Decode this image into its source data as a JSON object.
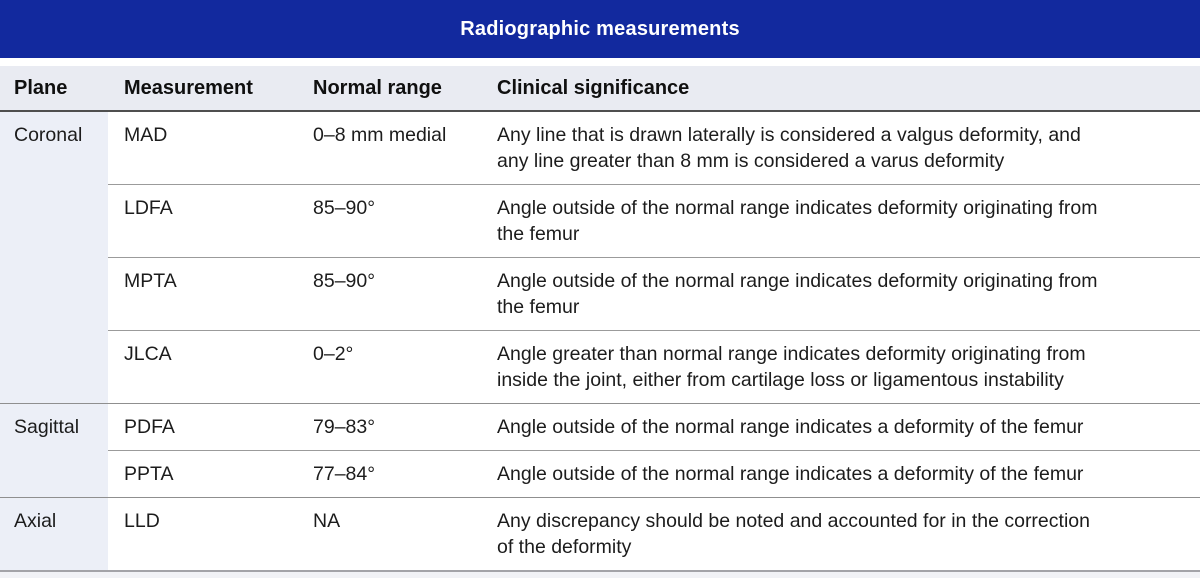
{
  "title": "Radiographic measurements",
  "colors": {
    "header_blue": "#12299E",
    "header_row_bg": "#E9EBF2",
    "plane_col_bg": "#ECEFF7"
  },
  "table": {
    "headers": [
      "Plane",
      "Measurement",
      "Normal range",
      "Clinical significance"
    ],
    "groups": [
      {
        "plane": "Coronal",
        "rows": [
          {
            "measurement": "MAD",
            "normal_range": "0–8 mm medial",
            "clinical_significance": [
              "Any line that is drawn laterally is considered a valgus deformity, and",
              "any line greater than 8 mm is considered a varus deformity"
            ]
          },
          {
            "measurement": "LDFA",
            "normal_range": "85–90°",
            "clinical_significance": [
              "Angle outside of the normal range indicates deformity originating from",
              "the femur"
            ]
          },
          {
            "measurement": "MPTA",
            "normal_range": "85–90°",
            "clinical_significance": [
              "Angle outside of the normal range indicates deformity originating from",
              "the femur"
            ]
          },
          {
            "measurement": "JLCA",
            "normal_range": "0–2°",
            "clinical_significance": [
              "Angle greater than normal range indicates deformity originating from",
              "inside the joint, either from cartilage loss or ligamentous instability"
            ]
          }
        ]
      },
      {
        "plane": "Sagittal",
        "rows": [
          {
            "measurement": "PDFA",
            "normal_range": "79–83°",
            "clinical_significance": [
              "Angle outside of the normal range indicates a deformity of the femur"
            ]
          },
          {
            "measurement": "PPTA",
            "normal_range": "77–84°",
            "clinical_significance": [
              "Angle outside of the normal range indicates a deformity of the femur"
            ]
          }
        ]
      },
      {
        "plane": "Axial",
        "rows": [
          {
            "measurement": "LLD",
            "normal_range": "NA",
            "clinical_significance": [
              "Any discrepancy should be noted and accounted for in the correction",
              "of the deformity"
            ]
          }
        ]
      }
    ]
  }
}
